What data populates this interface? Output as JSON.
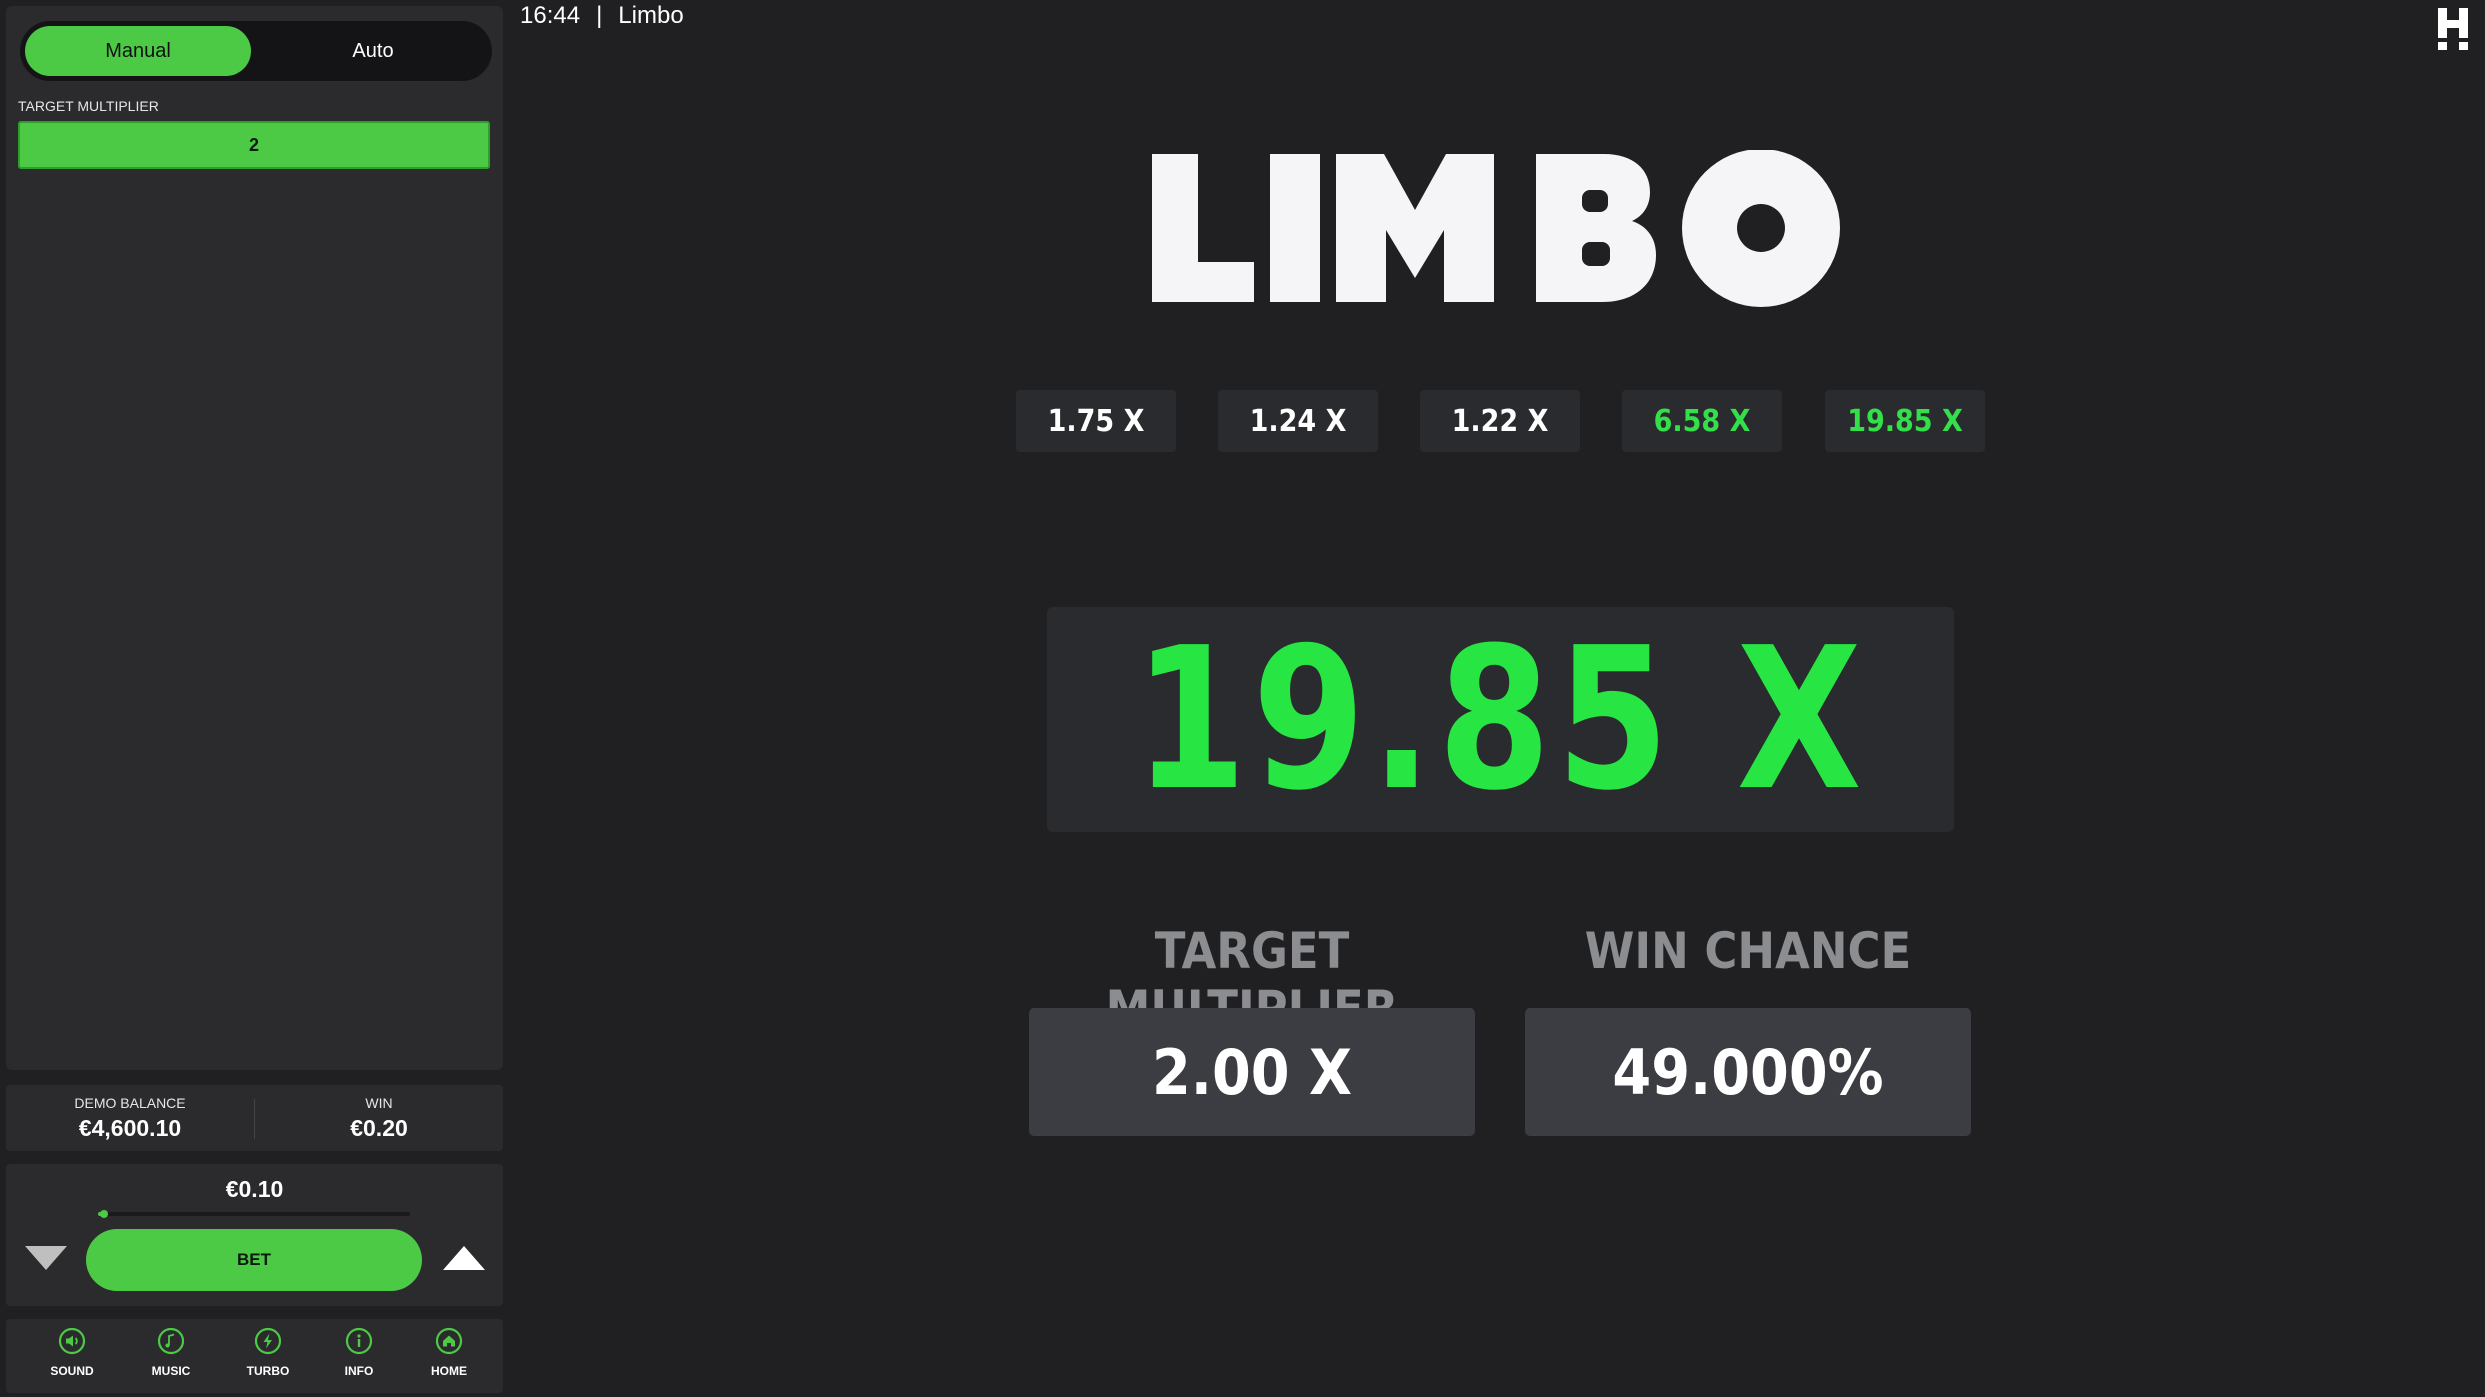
{
  "topbar": {
    "time": "16:44",
    "separator": "|",
    "game_name": "Limbo"
  },
  "mode": {
    "manual_label": "Manual",
    "auto_label": "Auto",
    "selected": "Manual"
  },
  "sidebar": {
    "target_multiplier_label": "TARGET MULTIPLIER",
    "target_multiplier_value": "2"
  },
  "balance": {
    "demo_balance_label": "DEMO BALANCE",
    "demo_balance_value": "€4,600.10",
    "win_label": "WIN",
    "win_value": "€0.20"
  },
  "bet": {
    "amount": "€0.10",
    "button_label": "BET",
    "slider_level": 0.02
  },
  "nav": {
    "items": [
      {
        "label": "SOUND",
        "icon": "sound-icon"
      },
      {
        "label": "MUSIC",
        "icon": "music-icon"
      },
      {
        "label": "TURBO",
        "icon": "turbo-icon"
      },
      {
        "label": "INFO",
        "icon": "info-icon"
      },
      {
        "label": "HOME",
        "icon": "home-icon"
      }
    ]
  },
  "game": {
    "logo_text": "LIMBO",
    "history": [
      {
        "value": "1.75 X",
        "win": false
      },
      {
        "value": "1.24 X",
        "win": false
      },
      {
        "value": "1.22 X",
        "win": false
      },
      {
        "value": "6.58 X",
        "win": true
      },
      {
        "value": "19.85 X",
        "win": true
      }
    ],
    "result": "19.85 X",
    "target_multiplier_label": "TARGET MULTIPLIER",
    "target_multiplier_value": "2.00 X",
    "win_chance_label": "WIN CHANCE",
    "win_chance_value": "49.000%"
  },
  "colors": {
    "accent_green": "#4cca46",
    "result_green": "#27e542",
    "background": "#202022",
    "panel": "#2b2b2d"
  }
}
